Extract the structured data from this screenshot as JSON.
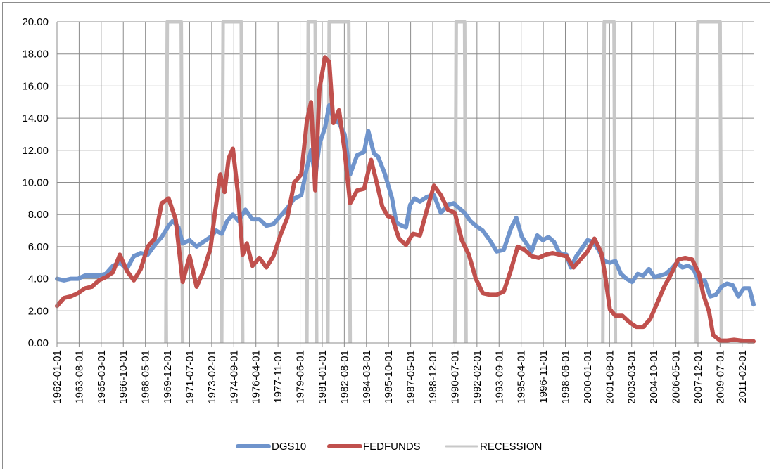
{
  "chart_data": {
    "type": "line",
    "title": "",
    "xlabel": "",
    "ylabel": "",
    "ylim": [
      0,
      20
    ],
    "y_ticks": [
      "0.00",
      "2.00",
      "4.00",
      "6.00",
      "8.00",
      "10.00",
      "12.00",
      "14.00",
      "16.00",
      "18.00",
      "20.00"
    ],
    "x_ticks": [
      "1962-01-01",
      "1963-08-01",
      "1965-03-01",
      "1966-10-01",
      "1968-05-01",
      "1969-12-01",
      "1971-07-01",
      "1973-02-01",
      "1974-09-01",
      "1976-04-01",
      "1977-11-01",
      "1979-06-01",
      "1981-01-01",
      "1982-08-01",
      "1984-03-01",
      "1985-10-01",
      "1987-05-01",
      "1988-12-01",
      "1990-07-01",
      "1992-02-01",
      "1993-09-01",
      "1995-04-01",
      "1996-11-01",
      "1998-06-01",
      "2000-01-01",
      "2001-08-01",
      "2003-03-01",
      "2004-10-01",
      "2006-05-01",
      "2007-12-01",
      "2009-07-01",
      "2011-02-01"
    ],
    "x_range": [
      1962.0,
      2011.9
    ],
    "grid": true,
    "legend_position": "bottom",
    "series": [
      {
        "name": "DGS10",
        "color": "#6f94cc",
        "x": [
          1962.0,
          1962.5,
          1963.0,
          1963.5,
          1964.0,
          1964.5,
          1965.0,
          1965.5,
          1966.0,
          1966.5,
          1967.0,
          1967.5,
          1968.0,
          1968.5,
          1969.0,
          1969.5,
          1970.0,
          1970.3,
          1970.7,
          1971.0,
          1971.5,
          1972.0,
          1972.5,
          1973.0,
          1973.4,
          1973.8,
          1974.2,
          1974.6,
          1975.0,
          1975.5,
          1976.0,
          1976.5,
          1977.0,
          1977.5,
          1978.0,
          1978.5,
          1979.0,
          1979.5,
          1979.8,
          1980.2,
          1980.5,
          1980.8,
          1981.2,
          1981.5,
          1981.8,
          1982.2,
          1982.6,
          1983.0,
          1983.5,
          1984.0,
          1984.3,
          1984.7,
          1985.0,
          1985.5,
          1986.0,
          1986.3,
          1986.7,
          1987.0,
          1987.3,
          1987.6,
          1988.0,
          1988.5,
          1989.0,
          1989.5,
          1990.0,
          1990.4,
          1990.8,
          1991.2,
          1991.6,
          1992.0,
          1992.5,
          1993.0,
          1993.5,
          1994.0,
          1994.5,
          1994.9,
          1995.3,
          1995.7,
          1996.0,
          1996.4,
          1996.8,
          1997.2,
          1997.6,
          1998.0,
          1998.5,
          1998.8,
          1999.2,
          1999.6,
          2000.0,
          2000.4,
          2000.8,
          2001.2,
          2001.6,
          2002.0,
          2002.4,
          2002.8,
          2003.2,
          2003.6,
          2004.0,
          2004.4,
          2004.8,
          2005.2,
          2005.6,
          2006.0,
          2006.4,
          2006.8,
          2007.2,
          2007.6,
          2008.0,
          2008.4,
          2008.8,
          2009.2,
          2009.6,
          2010.0,
          2010.4,
          2010.8,
          2011.2,
          2011.6,
          2011.9
        ],
        "y": [
          4.0,
          3.9,
          4.0,
          4.0,
          4.2,
          4.2,
          4.2,
          4.3,
          4.8,
          5.0,
          4.6,
          5.4,
          5.6,
          5.5,
          6.1,
          6.6,
          7.3,
          7.6,
          7.2,
          6.2,
          6.4,
          6.0,
          6.3,
          6.6,
          7.0,
          6.8,
          7.6,
          8.0,
          7.6,
          8.3,
          7.7,
          7.7,
          7.3,
          7.4,
          7.9,
          8.4,
          9.0,
          9.2,
          10.5,
          12.0,
          10.3,
          12.4,
          13.4,
          14.8,
          14.0,
          13.7,
          13.0,
          10.5,
          11.7,
          11.9,
          13.2,
          11.8,
          11.6,
          10.5,
          9.0,
          7.5,
          7.3,
          7.2,
          8.6,
          9.0,
          8.8,
          9.1,
          9.2,
          8.1,
          8.6,
          8.7,
          8.4,
          8.1,
          7.6,
          7.3,
          7.0,
          6.4,
          5.7,
          5.8,
          7.1,
          7.8,
          6.6,
          6.1,
          5.7,
          6.7,
          6.4,
          6.6,
          6.3,
          5.6,
          5.5,
          4.7,
          5.4,
          5.9,
          6.4,
          6.3,
          5.8,
          5.1,
          5.0,
          5.1,
          4.3,
          4.0,
          3.8,
          4.3,
          4.2,
          4.6,
          4.1,
          4.2,
          4.3,
          4.6,
          5.0,
          4.7,
          4.8,
          4.6,
          3.8,
          3.9,
          2.9,
          3.0,
          3.5,
          3.7,
          3.6,
          2.9,
          3.4,
          3.4,
          2.4
        ]
      },
      {
        "name": "FEDFUNDS",
        "color": "#c0504d",
        "x": [
          1962.0,
          1962.5,
          1963.0,
          1963.5,
          1964.0,
          1964.5,
          1965.0,
          1965.5,
          1966.0,
          1966.5,
          1967.0,
          1967.5,
          1968.0,
          1968.5,
          1969.0,
          1969.5,
          1970.0,
          1970.5,
          1971.0,
          1971.5,
          1972.0,
          1972.5,
          1973.0,
          1973.3,
          1973.7,
          1974.0,
          1974.3,
          1974.6,
          1975.0,
          1975.3,
          1975.6,
          1976.0,
          1976.5,
          1977.0,
          1977.5,
          1978.0,
          1978.5,
          1979.0,
          1979.5,
          1979.9,
          1980.2,
          1980.5,
          1980.8,
          1981.2,
          1981.5,
          1981.8,
          1982.2,
          1982.6,
          1983.0,
          1983.5,
          1984.0,
          1984.5,
          1984.9,
          1985.3,
          1985.7,
          1986.0,
          1986.5,
          1987.0,
          1987.5,
          1988.0,
          1988.5,
          1989.0,
          1989.5,
          1990.0,
          1990.5,
          1991.0,
          1991.5,
          1992.0,
          1992.5,
          1993.0,
          1993.5,
          1994.0,
          1994.5,
          1995.0,
          1995.5,
          1996.0,
          1996.5,
          1997.0,
          1997.5,
          1998.0,
          1998.5,
          1999.0,
          1999.5,
          2000.0,
          2000.5,
          2001.0,
          2001.3,
          2001.6,
          2002.0,
          2002.5,
          2003.0,
          2003.5,
          2004.0,
          2004.5,
          2005.0,
          2005.5,
          2006.0,
          2006.5,
          2007.0,
          2007.5,
          2008.0,
          2008.3,
          2008.7,
          2009.0,
          2009.5,
          2010.0,
          2010.5,
          2011.0,
          2011.5,
          2011.9
        ],
        "y": [
          2.3,
          2.8,
          2.9,
          3.1,
          3.4,
          3.5,
          3.9,
          4.1,
          4.4,
          5.5,
          4.5,
          3.9,
          4.6,
          6.0,
          6.5,
          8.7,
          9.0,
          7.7,
          3.8,
          5.4,
          3.5,
          4.5,
          5.9,
          8.0,
          10.5,
          9.4,
          11.5,
          12.1,
          9.0,
          5.5,
          6.2,
          4.8,
          5.3,
          4.7,
          5.4,
          6.7,
          7.8,
          10.0,
          10.5,
          13.8,
          15.0,
          9.5,
          15.8,
          17.8,
          17.5,
          13.7,
          14.5,
          12.0,
          8.7,
          9.5,
          9.6,
          11.4,
          10.0,
          8.5,
          7.9,
          7.8,
          6.5,
          6.1,
          6.8,
          6.7,
          8.3,
          9.8,
          9.2,
          8.3,
          8.1,
          6.4,
          5.5,
          4.0,
          3.1,
          3.0,
          3.0,
          3.2,
          4.5,
          6.0,
          5.8,
          5.4,
          5.3,
          5.5,
          5.6,
          5.5,
          5.4,
          4.7,
          5.2,
          5.7,
          6.5,
          5.6,
          4.0,
          2.1,
          1.7,
          1.7,
          1.3,
          1.0,
          1.0,
          1.5,
          2.5,
          3.5,
          4.3,
          5.2,
          5.3,
          5.2,
          4.3,
          3.0,
          2.0,
          0.5,
          0.15,
          0.15,
          0.2,
          0.15,
          0.1,
          0.1
        ]
      },
      {
        "name": "RECESSION",
        "color": "#c8c8c8",
        "periods": [
          [
            1969.9,
            1970.9
          ],
          [
            1973.9,
            1975.2
          ],
          [
            1980.0,
            1980.5
          ],
          [
            1981.5,
            1982.9
          ],
          [
            1990.6,
            1991.2
          ],
          [
            2001.2,
            2001.9
          ],
          [
            2007.9,
            2009.5
          ]
        ]
      }
    ]
  }
}
